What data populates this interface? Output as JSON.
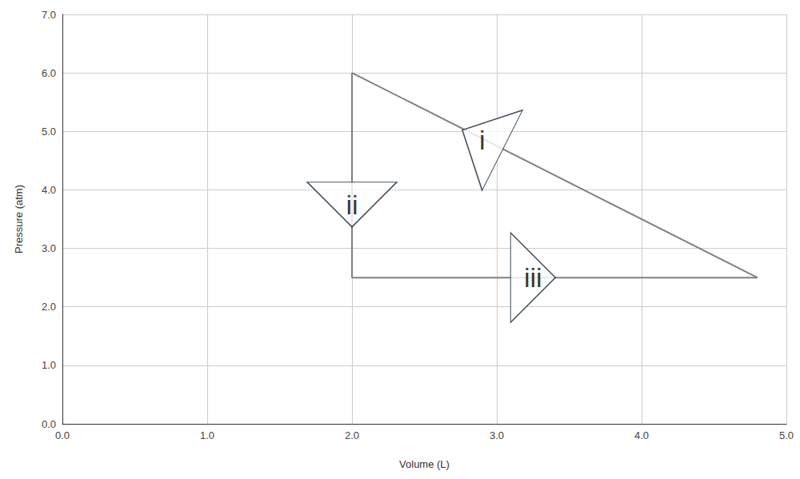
{
  "chart_data": {
    "type": "line",
    "x_label": "Volume (L)",
    "y_label": "Pressure (atm)",
    "x": [
      2.0,
      2.0,
      4.8,
      2.0
    ],
    "values": [
      6.0,
      2.5,
      2.5,
      6.0
    ],
    "color": "#808080",
    "xlim": [
      0,
      5
    ],
    "ylim": [
      0,
      7
    ],
    "xticks": [
      {
        "value": 0,
        "label": "0.0"
      },
      {
        "value": 1,
        "label": "1.0"
      },
      {
        "value": 2,
        "label": "2.0"
      },
      {
        "value": 3,
        "label": "3.0"
      },
      {
        "value": 4,
        "label": "4.0"
      },
      {
        "value": 5,
        "label": "5.0"
      }
    ],
    "yticks": [
      {
        "value": 0,
        "label": "0.0"
      },
      {
        "value": 1,
        "label": "1.0"
      },
      {
        "value": 2,
        "label": "2.0"
      },
      {
        "value": 3,
        "label": "3.0"
      },
      {
        "value": 4,
        "label": "4.0"
      },
      {
        "value": 5,
        "label": "5.0"
      },
      {
        "value": 6,
        "label": "6.0"
      },
      {
        "value": 7,
        "label": "7.0"
      }
    ],
    "grid": true,
    "annotations": [
      {
        "text": "i",
        "x": 2.9,
        "y": 4.85
      },
      {
        "text": "ii",
        "x": 2.0,
        "y": 3.75
      },
      {
        "text": "iii",
        "x": 3.25,
        "y": 2.5
      }
    ]
  }
}
